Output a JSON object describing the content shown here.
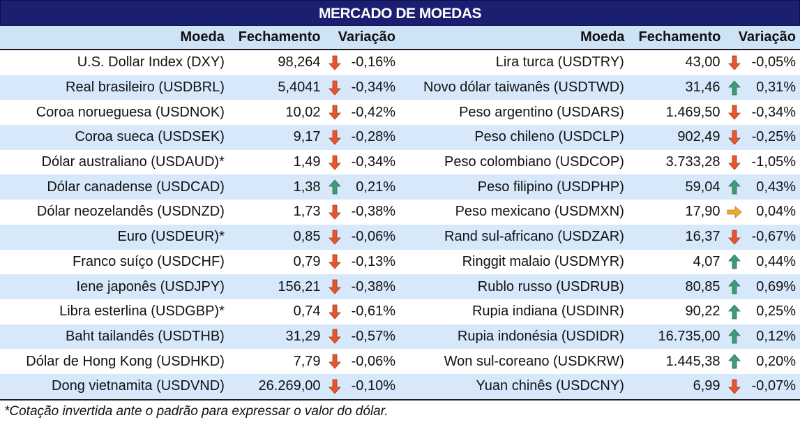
{
  "title": "MERCADO DE MOEDAS",
  "headers": {
    "currency": "Moeda",
    "close": "Fechamento",
    "change": "Variação"
  },
  "colors": {
    "down": "#e4572e",
    "up": "#3f9a78",
    "flat": "#f0a830",
    "title_bg": "#1a1f71",
    "row_alt": "#d6e8fa"
  },
  "left": [
    {
      "name": "U.S. Dollar Index (DXY)",
      "close": "98,264",
      "dir": "down",
      "change": "-0,16%"
    },
    {
      "name": "Real brasileiro (USDBRL)",
      "close": "5,4041",
      "dir": "down",
      "change": "-0,34%"
    },
    {
      "name": "Coroa norueguesa (USDNOK)",
      "close": "10,02",
      "dir": "down",
      "change": "-0,42%"
    },
    {
      "name": "Coroa sueca (USDSEK)",
      "close": "9,17",
      "dir": "down",
      "change": "-0,28%"
    },
    {
      "name": "Dólar australiano (USDAUD)*",
      "close": "1,49",
      "dir": "down",
      "change": "-0,34%"
    },
    {
      "name": "Dólar canadense (USDCAD)",
      "close": "1,38",
      "dir": "up",
      "change": "0,21%"
    },
    {
      "name": "Dólar neozelandês (USDNZD)",
      "close": "1,73",
      "dir": "down",
      "change": "-0,38%"
    },
    {
      "name": "Euro (USDEUR)*",
      "close": "0,85",
      "dir": "down",
      "change": "-0,06%"
    },
    {
      "name": "Franco suíço (USDCHF)",
      "close": "0,79",
      "dir": "down",
      "change": "-0,13%"
    },
    {
      "name": "Iene japonês (USDJPY)",
      "close": "156,21",
      "dir": "down",
      "change": "-0,38%"
    },
    {
      "name": "Libra esterlina (USDGBP)*",
      "close": "0,74",
      "dir": "down",
      "change": "-0,61%"
    },
    {
      "name": "Baht tailandês (USDTHB)",
      "close": "31,29",
      "dir": "down",
      "change": "-0,57%"
    },
    {
      "name": "Dólar de Hong Kong (USDHKD)",
      "close": "7,79",
      "dir": "down",
      "change": "-0,06%"
    },
    {
      "name": "Dong vietnamita (USDVND)",
      "close": "26.269,00",
      "dir": "down",
      "change": "-0,10%"
    }
  ],
  "right": [
    {
      "name": "Lira turca (USDTRY)",
      "close": "43,00",
      "dir": "down",
      "change": "-0,05%"
    },
    {
      "name": "Novo dólar taiwanês (USDTWD)",
      "close": "31,46",
      "dir": "up",
      "change": "0,31%"
    },
    {
      "name": "Peso argentino (USDARS)",
      "close": "1.469,50",
      "dir": "down",
      "change": "-0,34%"
    },
    {
      "name": "Peso chileno (USDCLP)",
      "close": "902,49",
      "dir": "down",
      "change": "-0,25%"
    },
    {
      "name": "Peso colombiano (USDCOP)",
      "close": "3.733,28",
      "dir": "down",
      "change": "-1,05%"
    },
    {
      "name": "Peso filipino (USDPHP)",
      "close": "59,04",
      "dir": "up",
      "change": "0,43%"
    },
    {
      "name": "Peso mexicano (USDMXN)",
      "close": "17,90",
      "dir": "flat",
      "change": "0,04%"
    },
    {
      "name": "Rand sul-africano (USDZAR)",
      "close": "16,37",
      "dir": "down",
      "change": "-0,67%"
    },
    {
      "name": "Ringgit malaio (USDMYR)",
      "close": "4,07",
      "dir": "up",
      "change": "0,44%"
    },
    {
      "name": "Rublo russo (USDRUB)",
      "close": "80,85",
      "dir": "up",
      "change": "0,69%"
    },
    {
      "name": "Rupia indiana (USDINR)",
      "close": "90,22",
      "dir": "up",
      "change": "0,25%"
    },
    {
      "name": "Rupia indonésia (USDIDR)",
      "close": "16.735,00",
      "dir": "up",
      "change": "0,12%"
    },
    {
      "name": "Won sul-coreano (USDKRW)",
      "close": "1.445,38",
      "dir": "up",
      "change": "0,20%"
    },
    {
      "name": "Yuan chinês (USDCNY)",
      "close": "6,99",
      "dir": "down",
      "change": "-0,07%"
    }
  ],
  "footnote": "*Cotação invertida ante o padrão para expressar o valor do dólar."
}
